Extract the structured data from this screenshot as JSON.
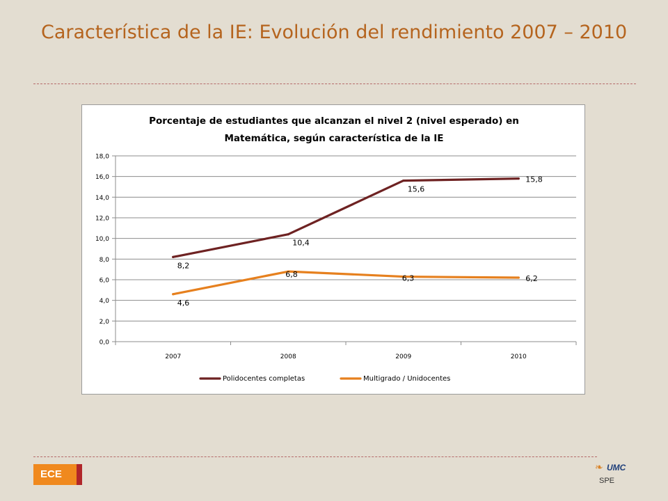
{
  "slide": {
    "title": "Característica de la IE: Evolución del rendimiento 2007 – 2010"
  },
  "footer": {
    "badge": "ECE",
    "logo_text": "UMC",
    "logo_sub": "SPE"
  },
  "colors": {
    "background": "#e3ddd1",
    "title": "#b5641e",
    "series_polidocentes": "#6e2222",
    "series_multigrado": "#e6801e",
    "badge": "#f0891e",
    "badge_bar": "#b0262a"
  },
  "chart_data": {
    "type": "line",
    "title_lines": [
      "Porcentaje de estudiantes que alcanzan el nivel 2 (nivel esperado) en",
      "Matemática, según característica de la IE"
    ],
    "categories": [
      "2007",
      "2008",
      "2009",
      "2010"
    ],
    "y_ticks": [
      "0,0",
      "2,0",
      "4,0",
      "6,0",
      "8,0",
      "10,0",
      "12,0",
      "14,0",
      "16,0",
      "18,0"
    ],
    "ylim": [
      0,
      18
    ],
    "grid": true,
    "legend_position": "bottom",
    "series": [
      {
        "name": "Polidocentes completas",
        "color": "#6e2222",
        "values": [
          8.2,
          10.4,
          15.6,
          15.8
        ],
        "labels": [
          "8,2",
          "10,4",
          "15,6",
          "15,8"
        ]
      },
      {
        "name": "Multigrado / Unidocentes",
        "color": "#e6801e",
        "values": [
          4.6,
          6.8,
          6.3,
          6.2
        ],
        "labels": [
          "4,6",
          "6,8",
          "6,3",
          "6,2"
        ]
      }
    ]
  }
}
